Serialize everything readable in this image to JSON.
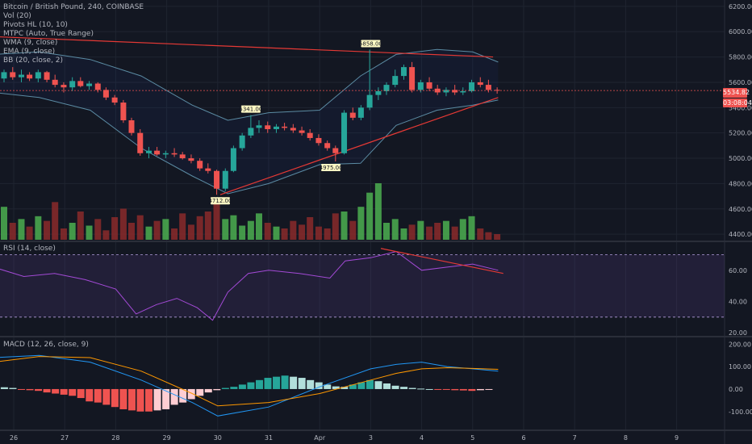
{
  "header": {
    "symbol": "Bitcoin / British Pound, 240, COINBASE",
    "indicators": [
      "Vol (20)",
      "Pivots HL (10, 10)",
      "MTPC (Auto, True Range)",
      "WMA (9, close)",
      "EMA (9, close)",
      "BB (20, close, 2)"
    ]
  },
  "rsi_label": "RSI (14, close)",
  "macd_label": "MACD (12, 26, close, 9)",
  "price_tags": {
    "last": "5534.82",
    "countdown": "03:08:04"
  },
  "pivots": [
    {
      "label": "5341.00",
      "x": 30.65,
      "y": 5341
    },
    {
      "label": "5858.00",
      "x": 33.0,
      "y": 5858
    },
    {
      "label": "4712.00",
      "x": 30.05,
      "y": 4712
    },
    {
      "label": "4975.00",
      "x": 32.22,
      "y": 4975
    }
  ],
  "colors": {
    "up": "#26a69a",
    "down": "#ef5350",
    "vol_up": "#4caf50",
    "vol_down": "#8b2a2a",
    "bb": "#5b8ba3",
    "rsi": "#a34ad6",
    "macd": "#2196f3",
    "signal": "#ff9800"
  },
  "chart_data": [
    {
      "type": "candlestick",
      "title": "Bitcoin / British Pound, 240, COINBASE",
      "x_unit": "day (March 26 → April 9)",
      "xticks": [
        "26",
        "27",
        "28",
        "29",
        "30",
        "31",
        "Apr",
        "3",
        "4",
        "5",
        "6",
        "7",
        "8",
        "9"
      ],
      "xtick_values": [
        26,
        27,
        28,
        29,
        30,
        31,
        32,
        33,
        34,
        35,
        36,
        37,
        38,
        39
      ],
      "ylim": [
        4350,
        6250
      ],
      "yticks": [
        4400,
        4600,
        4800,
        5000,
        5200,
        5400,
        5600,
        5800,
        6000,
        6200
      ],
      "candles": [
        [
          25.65,
          5740,
          5760,
          5610,
          5630
        ],
        [
          25.81,
          5630,
          5700,
          5600,
          5680
        ],
        [
          25.98,
          5680,
          5720,
          5620,
          5640
        ],
        [
          26.15,
          5640,
          5700,
          5600,
          5660
        ],
        [
          26.31,
          5660,
          5680,
          5610,
          5630
        ],
        [
          26.48,
          5630,
          5700,
          5600,
          5680
        ],
        [
          26.65,
          5680,
          5690,
          5600,
          5620
        ],
        [
          26.81,
          5620,
          5660,
          5560,
          5580
        ],
        [
          26.98,
          5580,
          5600,
          5520,
          5560
        ],
        [
          27.15,
          5560,
          5640,
          5530,
          5610
        ],
        [
          27.31,
          5610,
          5640,
          5560,
          5570
        ],
        [
          27.48,
          5570,
          5610,
          5540,
          5590
        ],
        [
          27.65,
          5590,
          5600,
          5520,
          5540
        ],
        [
          27.81,
          5540,
          5560,
          5460,
          5480
        ],
        [
          27.98,
          5480,
          5500,
          5420,
          5440
        ],
        [
          28.15,
          5440,
          5460,
          5280,
          5300
        ],
        [
          28.31,
          5300,
          5320,
          5180,
          5200
        ],
        [
          28.48,
          5200,
          5230,
          5020,
          5040
        ],
        [
          28.65,
          5040,
          5090,
          5000,
          5060
        ],
        [
          28.81,
          5060,
          5090,
          5020,
          5030
        ],
        [
          28.98,
          5030,
          5060,
          5000,
          5040
        ],
        [
          29.15,
          5040,
          5080,
          5010,
          5030
        ],
        [
          29.31,
          5030,
          5050,
          4990,
          5000
        ],
        [
          29.48,
          5000,
          5030,
          4960,
          4980
        ],
        [
          29.65,
          4980,
          5000,
          4900,
          4920
        ],
        [
          29.81,
          4920,
          4960,
          4880,
          4900
        ],
        [
          29.98,
          4900,
          4910,
          4712,
          4760
        ],
        [
          30.15,
          4760,
          4920,
          4740,
          4900
        ],
        [
          30.31,
          4900,
          5100,
          4890,
          5080
        ],
        [
          30.48,
          5080,
          5200,
          5060,
          5180
        ],
        [
          30.65,
          5180,
          5341,
          5160,
          5240
        ],
        [
          30.81,
          5240,
          5300,
          5200,
          5260
        ],
        [
          30.98,
          5260,
          5290,
          5200,
          5230
        ],
        [
          31.15,
          5230,
          5270,
          5200,
          5250
        ],
        [
          31.31,
          5250,
          5280,
          5220,
          5240
        ],
        [
          31.48,
          5240,
          5270,
          5200,
          5220
        ],
        [
          31.65,
          5220,
          5250,
          5180,
          5200
        ],
        [
          31.81,
          5200,
          5230,
          5140,
          5160
        ],
        [
          31.98,
          5160,
          5190,
          5100,
          5120
        ],
        [
          32.15,
          5120,
          5140,
          5060,
          5080
        ],
        [
          32.31,
          5080,
          5100,
          4975,
          5040
        ],
        [
          32.48,
          5040,
          5380,
          5030,
          5360
        ],
        [
          32.65,
          5360,
          5400,
          5300,
          5320
        ],
        [
          32.81,
          5320,
          5420,
          5300,
          5400
        ],
        [
          32.98,
          5400,
          5858,
          5380,
          5500
        ],
        [
          33.15,
          5500,
          5560,
          5460,
          5530
        ],
        [
          33.31,
          5530,
          5600,
          5500,
          5580
        ],
        [
          33.48,
          5580,
          5700,
          5560,
          5650
        ],
        [
          33.65,
          5650,
          5740,
          5620,
          5720
        ],
        [
          33.81,
          5720,
          5760,
          5520,
          5540
        ],
        [
          33.98,
          5540,
          5620,
          5520,
          5600
        ],
        [
          34.15,
          5600,
          5640,
          5530,
          5550
        ],
        [
          34.31,
          5550,
          5580,
          5500,
          5520
        ],
        [
          34.48,
          5520,
          5560,
          5490,
          5540
        ],
        [
          34.65,
          5540,
          5580,
          5500,
          5520
        ],
        [
          34.81,
          5520,
          5560,
          5500,
          5530
        ],
        [
          34.98,
          5530,
          5620,
          5520,
          5600
        ],
        [
          35.15,
          5600,
          5640,
          5560,
          5580
        ],
        [
          35.31,
          5580,
          5620,
          5520,
          5540
        ],
        [
          35.48,
          5540,
          5560,
          5510,
          5535
        ]
      ],
      "volume": [
        28,
        35,
        18,
        22,
        14,
        25,
        20,
        40,
        12,
        18,
        30,
        15,
        22,
        10,
        24,
        33,
        18,
        26,
        14,
        20,
        22,
        12,
        28,
        16,
        25,
        30,
        38,
        22,
        26,
        15,
        20,
        28,
        18,
        14,
        12,
        20,
        16,
        24,
        14,
        12,
        28,
        30,
        20,
        35,
        50,
        60,
        18,
        22,
        12,
        16,
        20,
        14,
        18,
        20,
        14,
        22,
        25,
        12,
        8,
        6
      ],
      "bollinger": {
        "x": [
          25.6,
          26.5,
          27.5,
          28.5,
          29.5,
          30.2,
          31,
          32,
          32.8,
          33.5,
          34.3,
          35.0,
          35.5
        ],
        "upper": [
          5820,
          5840,
          5780,
          5650,
          5420,
          5300,
          5360,
          5380,
          5650,
          5820,
          5860,
          5840,
          5760
        ],
        "lower": [
          5520,
          5480,
          5380,
          5080,
          4860,
          4720,
          4800,
          4950,
          4960,
          5260,
          5380,
          5420,
          5460
        ]
      },
      "trendlines": [
        {
          "from": [
            25.65,
            5960
          ],
          "to": [
            35.4,
            5800
          ]
        },
        {
          "from": [
            30.05,
            4712
          ],
          "to": [
            35.5,
            5480
          ]
        }
      ]
    },
    {
      "type": "line",
      "title": "RSI (14, close)",
      "ylim": [
        18,
        78
      ],
      "yticks": [
        20,
        40,
        60
      ],
      "band": [
        30,
        70
      ],
      "x": [
        25.6,
        26.2,
        26.8,
        27.4,
        28.0,
        28.4,
        28.8,
        29.2,
        29.6,
        29.9,
        30.2,
        30.6,
        31.0,
        31.6,
        32.2,
        32.5,
        33.0,
        33.5,
        34.0,
        34.5,
        35.0,
        35.5
      ],
      "values": [
        62,
        56,
        58,
        54,
        48,
        32,
        38,
        42,
        36,
        28,
        46,
        58,
        60,
        58,
        55,
        66,
        68,
        72,
        60,
        62,
        64,
        60
      ],
      "divergence": {
        "from": [
          33.2,
          74
        ],
        "to": [
          35.6,
          58
        ]
      }
    },
    {
      "type": "bar",
      "title": "MACD (12, 26, close, 9)",
      "ylim": [
        -180,
        230
      ],
      "yticks": [
        -100,
        0,
        100,
        200
      ],
      "hist_x_start": 25.65,
      "hist_x_step": 0.1667,
      "histogram": [
        10,
        8,
        5,
        -2,
        -5,
        -8,
        -15,
        -20,
        -25,
        -30,
        -40,
        -55,
        -60,
        -70,
        -80,
        -90,
        -95,
        -100,
        -100,
        -95,
        -90,
        -70,
        -60,
        -45,
        -30,
        -15,
        -5,
        5,
        10,
        20,
        30,
        40,
        50,
        55,
        60,
        55,
        50,
        40,
        30,
        20,
        12,
        10,
        20,
        30,
        40,
        35,
        25,
        15,
        10,
        5,
        2,
        0,
        -2,
        -3,
        -5,
        -6,
        -8,
        -5,
        -3
      ],
      "macd": {
        "x": [
          25.6,
          26.5,
          27.5,
          28.5,
          29.5,
          30.0,
          31.0,
          32.0,
          33.0,
          33.5,
          34.0,
          34.5,
          35.0,
          35.5
        ],
        "values": [
          140,
          150,
          120,
          40,
          -60,
          -120,
          -80,
          10,
          90,
          110,
          120,
          100,
          90,
          80
        ]
      },
      "signal": {
        "x": [
          25.6,
          26.5,
          27.5,
          28.5,
          29.5,
          30.0,
          31.0,
          32.0,
          33.0,
          33.5,
          34.0,
          34.5,
          35.0,
          35.5
        ],
        "values": [
          120,
          145,
          140,
          80,
          -20,
          -75,
          -60,
          -20,
          40,
          70,
          90,
          95,
          92,
          88
        ]
      }
    }
  ]
}
